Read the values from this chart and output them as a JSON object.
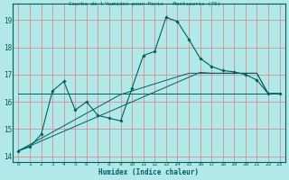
{
  "title": "Courbe de l'humidex pour Paris - Montsouris (75)",
  "xlabel": "Humidex (Indice chaleur)",
  "background_color": "#b2e8e8",
  "line_color": "#006060",
  "grid_color": "#d49090",
  "x_values": [
    0,
    1,
    2,
    3,
    4,
    5,
    6,
    7,
    8,
    9,
    10,
    11,
    12,
    13,
    14,
    15,
    16,
    17,
    18,
    19,
    20,
    21,
    22,
    23
  ],
  "y_main": [
    14.2,
    14.35,
    14.8,
    16.4,
    16.75,
    15.7,
    16.0,
    15.5,
    15.4,
    15.3,
    16.5,
    17.7,
    17.85,
    19.1,
    18.95,
    18.3,
    17.6,
    17.3,
    17.15,
    17.1,
    17.0,
    16.8,
    16.3,
    16.3
  ],
  "y_trend1": [
    14.2,
    14.43,
    14.66,
    14.89,
    15.12,
    15.35,
    15.58,
    15.81,
    16.04,
    16.27,
    16.4,
    16.53,
    16.66,
    16.79,
    16.92,
    17.05,
    17.05,
    17.05,
    17.05,
    17.05,
    17.05,
    17.05,
    16.3,
    16.3
  ],
  "y_trend2": [
    14.2,
    14.38,
    14.56,
    14.74,
    14.92,
    15.1,
    15.28,
    15.46,
    15.64,
    15.82,
    16.0,
    16.18,
    16.36,
    16.54,
    16.72,
    16.9,
    17.08,
    17.05,
    17.05,
    17.05,
    17.05,
    17.05,
    16.3,
    16.3
  ],
  "y_flat": [
    16.3,
    16.3,
    16.3,
    16.3,
    16.3,
    16.3,
    16.3,
    16.3,
    16.3,
    16.3,
    16.3,
    16.3,
    16.3,
    16.3,
    16.3,
    16.3,
    16.3,
    16.3,
    16.3,
    16.3,
    16.3,
    16.3,
    16.3,
    16.3
  ],
  "ylim": [
    13.8,
    19.6
  ],
  "xlim": [
    -0.5,
    23.5
  ],
  "yticks": [
    14,
    15,
    16,
    17,
    18,
    19
  ],
  "xticks": [
    0,
    1,
    2,
    3,
    4,
    5,
    6,
    7,
    8,
    9,
    10,
    11,
    12,
    13,
    14,
    15,
    16,
    17,
    18,
    19,
    20,
    21,
    22,
    23
  ]
}
